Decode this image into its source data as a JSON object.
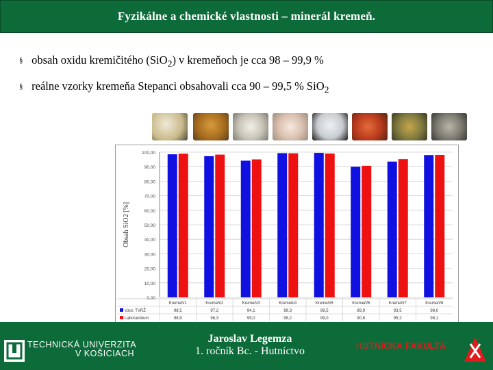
{
  "title": "Fyzikálne a chemické vlastnosti – minerál kremeň.",
  "bullets": [
    {
      "pre": "obsah oxidu kremičitého (SiO",
      "sub": "2",
      "post": ") v kremeňoch je cca 98 – 99,9 %"
    },
    {
      "pre": "reálne vzorky kremeňa Stepanci obsahovali cca 90 – 99,5 % SiO",
      "sub": "2",
      "post": ""
    }
  ],
  "bullet_symbol": "§",
  "colors": {
    "header": "#0d6b3a",
    "series1": "#1010e0",
    "series2": "#ee1111",
    "accent_red": "#e01b1b"
  },
  "chart_data": {
    "type": "bar",
    "ylabel": "Obsah SiO2 [%]",
    "ylim": [
      0,
      100
    ],
    "yticks": [
      "0,00",
      "10,00",
      "20,00",
      "30,00",
      "40,00",
      "50,00",
      "60,00",
      "70,00",
      "80,00",
      "90,00",
      "100,00"
    ],
    "categories": [
      "Kremeň/1",
      "Kremeň/2",
      "Kremeň/3",
      "Kremeň/4",
      "Kremeň/5",
      "Kremeň/6",
      "Kremeň/7",
      "Kremeň/8"
    ],
    "series": [
      {
        "name": "Vzor. TVRŽ",
        "values": [
          98.5,
          97.2,
          94.1,
          99.3,
          99.5,
          89.9,
          93.5,
          98.0
        ]
      },
      {
        "name": "Laboratórium",
        "values": [
          98.9,
          98.3,
          95.0,
          99.2,
          99.0,
          90.6,
          95.2,
          98.1
        ]
      }
    ],
    "table_rows": [
      [
        "98,5",
        "97,2",
        "94,1",
        "99,3",
        "99,5",
        "89,9",
        "93,5",
        "98,0"
      ],
      [
        "98,9",
        "98,3",
        "95,0",
        "99,2",
        "99,0",
        "90,6",
        "95,2",
        "98,1"
      ]
    ]
  },
  "footer": {
    "university_line1": "TECHNICKÁ UNIVERZITA",
    "university_line2": "V KOŠICIACH",
    "author_name": "Jaroslav Legemza",
    "author_detail": "1. ročník Bc. - Hutníctvo",
    "faculty": "HUTNÍCKA FAKULTA"
  }
}
